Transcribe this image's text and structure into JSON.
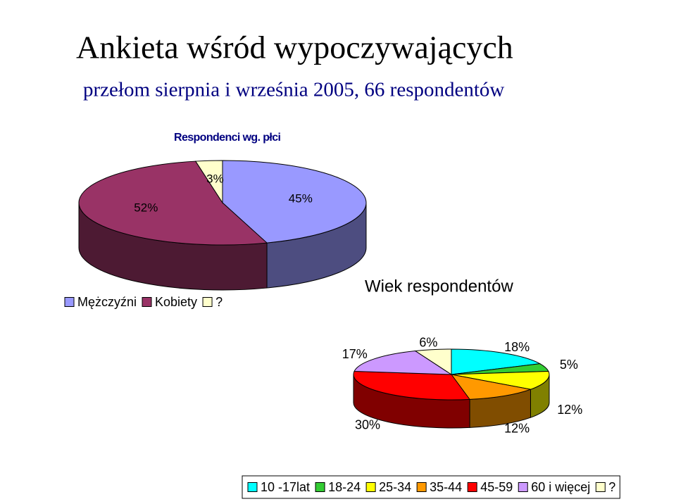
{
  "header": {
    "title": "Ankieta wśród wypoczywających",
    "subtitle": "przełom sierpnia i września 2005, 66 respondentów"
  },
  "chart_data": [
    {
      "type": "pie",
      "title": "Respondenci wg. płci",
      "categories": [
        "Mężczyźni",
        "Kobiety",
        "?"
      ],
      "values": [
        45,
        52,
        3
      ],
      "value_labels": [
        "45%",
        "52%",
        "3%"
      ],
      "colors": [
        "#9999ff",
        "#993366",
        "#ffffcc"
      ],
      "legend": "bottom"
    },
    {
      "type": "pie",
      "title": "Wiek respondentów",
      "categories": [
        "10 -17lat",
        "18-24",
        "25-34",
        "35-44",
        "45-59",
        "60 i więcej",
        "?"
      ],
      "values": [
        18,
        5,
        12,
        12,
        30,
        17,
        6
      ],
      "value_labels": [
        "18%",
        "5%",
        "12%",
        "12%",
        "30%",
        "17%",
        "6%"
      ],
      "colors": [
        "#00ffff",
        "#33cc33",
        "#ffff00",
        "#ff9900",
        "#ff0000",
        "#cc99ff",
        "#ffffcc"
      ],
      "legend": "bottom"
    }
  ]
}
